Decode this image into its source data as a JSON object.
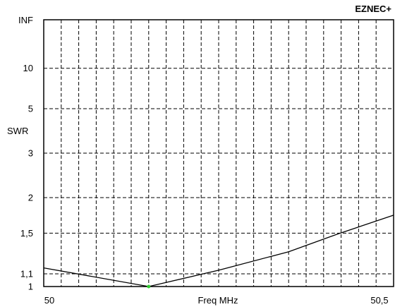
{
  "app": {
    "brand": "EZNEC+"
  },
  "chart_data": {
    "type": "line",
    "xlabel": "Freq MHz",
    "ylabel": "SWR",
    "xlim": [
      50,
      50.5
    ],
    "x_tick_labels": [
      "50",
      "50,5"
    ],
    "x_grid_divisions": 20,
    "y_scale": "reflection-coefficient (SWR)",
    "y_ticks": [
      1,
      1.1,
      1.5,
      2,
      3,
      5,
      10
    ],
    "y_tick_labels": [
      "1",
      "1,1",
      "1,5",
      "2",
      "3",
      "5",
      "10"
    ],
    "y_top_label": "INF",
    "grid": true,
    "series": [
      {
        "x": [
          50,
          50.15,
          50.25,
          50.35,
          50.42,
          50.5
        ],
        "y": [
          1.15,
          1.0,
          1.13,
          1.3,
          1.49,
          1.73
        ]
      }
    ],
    "marker": {
      "x": 50.15,
      "y": 1.0,
      "color": "#33cc33"
    }
  }
}
